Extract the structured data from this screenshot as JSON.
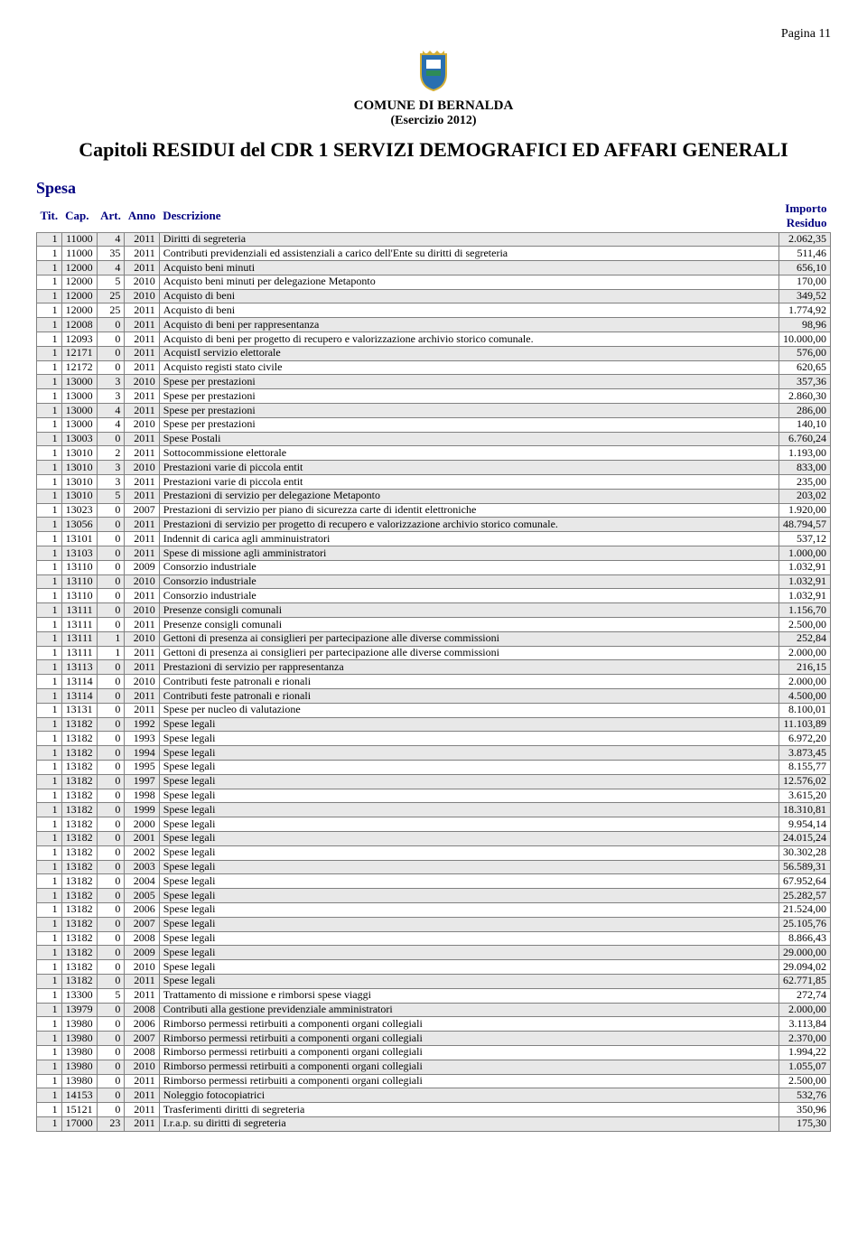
{
  "page_number": "Pagina 11",
  "org": "COMUNE DI BERNALDA",
  "exercise": "(Esercizio 2012)",
  "title": "Capitoli RESIDUI del CDR 1 SERVIZI DEMOGRAFICI ED AFFARI GENERALI",
  "section": "Spesa",
  "headers": {
    "tit": "Tit.",
    "cap": "Cap.",
    "art": "Art.",
    "anno": "Anno",
    "desc": "Descrizione",
    "imp": "Importo Residuo"
  },
  "crest_colors": {
    "gold": "#d4af37",
    "blue": "#2a6fb0",
    "green": "#2e8b57",
    "red": "#b22222"
  },
  "rows": [
    {
      "t": "1",
      "c": "11000",
      "a": "4",
      "y": "2011",
      "d": "Diritti di segreteria",
      "i": "2.062,35"
    },
    {
      "t": "1",
      "c": "11000",
      "a": "35",
      "y": "2011",
      "d": "Contributi previdenziali ed assistenziali a carico dell'Ente su diritti di segreteria",
      "i": "511,46"
    },
    {
      "t": "1",
      "c": "12000",
      "a": "4",
      "y": "2011",
      "d": "Acquisto beni minuti",
      "i": "656,10"
    },
    {
      "t": "1",
      "c": "12000",
      "a": "5",
      "y": "2010",
      "d": "Acquisto beni minuti per delegazione Metaponto",
      "i": "170,00"
    },
    {
      "t": "1",
      "c": "12000",
      "a": "25",
      "y": "2010",
      "d": "Acquisto di beni",
      "i": "349,52"
    },
    {
      "t": "1",
      "c": "12000",
      "a": "25",
      "y": "2011",
      "d": "Acquisto di beni",
      "i": "1.774,92"
    },
    {
      "t": "1",
      "c": "12008",
      "a": "0",
      "y": "2011",
      "d": "Acquisto di beni per rappresentanza",
      "i": "98,96"
    },
    {
      "t": "1",
      "c": "12093",
      "a": "0",
      "y": "2011",
      "d": "Acquisto di beni per progetto di recupero e valorizzazione archivio storico comunale.",
      "i": "10.000,00"
    },
    {
      "t": "1",
      "c": "12171",
      "a": "0",
      "y": "2011",
      "d": "AcquistI servizio elettorale",
      "i": "576,00"
    },
    {
      "t": "1",
      "c": "12172",
      "a": "0",
      "y": "2011",
      "d": "Acquisto registi stato civile",
      "i": "620,65"
    },
    {
      "t": "1",
      "c": "13000",
      "a": "3",
      "y": "2010",
      "d": "Spese per prestazioni",
      "i": "357,36"
    },
    {
      "t": "1",
      "c": "13000",
      "a": "3",
      "y": "2011",
      "d": "Spese per prestazioni",
      "i": "2.860,30"
    },
    {
      "t": "1",
      "c": "13000",
      "a": "4",
      "y": "2011",
      "d": "Spese per prestazioni",
      "i": "286,00"
    },
    {
      "t": "1",
      "c": "13000",
      "a": "4",
      "y": "2010",
      "d": "Spese per prestazioni",
      "i": "140,10"
    },
    {
      "t": "1",
      "c": "13003",
      "a": "0",
      "y": "2011",
      "d": "Spese Postali",
      "i": "6.760,24"
    },
    {
      "t": "1",
      "c": "13010",
      "a": "2",
      "y": "2011",
      "d": "Sottocommissione elettorale",
      "i": "1.193,00"
    },
    {
      "t": "1",
      "c": "13010",
      "a": "3",
      "y": "2010",
      "d": "Prestazioni varie  di piccola entit",
      "i": "833,00"
    },
    {
      "t": "1",
      "c": "13010",
      "a": "3",
      "y": "2011",
      "d": "Prestazioni varie  di piccola entit",
      "i": "235,00"
    },
    {
      "t": "1",
      "c": "13010",
      "a": "5",
      "y": "2011",
      "d": "Prestazioni di servizio per delegazione Metaponto",
      "i": "203,02"
    },
    {
      "t": "1",
      "c": "13023",
      "a": "0",
      "y": "2007",
      "d": "Prestazioni di servizio per piano di sicurezza carte di identit elettroniche",
      "i": "1.920,00"
    },
    {
      "t": "1",
      "c": "13056",
      "a": "0",
      "y": "2011",
      "d": "Prestazioni di servizio per progetto di recupero e valorizzazione archivio storico comunale.",
      "i": "48.794,57"
    },
    {
      "t": "1",
      "c": "13101",
      "a": "0",
      "y": "2011",
      "d": "Indennit di carica agli amminuistratori",
      "i": "537,12"
    },
    {
      "t": "1",
      "c": "13103",
      "a": "0",
      "y": "2011",
      "d": "Spese di missione agli amministratori",
      "i": "1.000,00"
    },
    {
      "t": "1",
      "c": "13110",
      "a": "0",
      "y": "2009",
      "d": "Consorzio industriale",
      "i": "1.032,91"
    },
    {
      "t": "1",
      "c": "13110",
      "a": "0",
      "y": "2010",
      "d": "Consorzio industriale",
      "i": "1.032,91"
    },
    {
      "t": "1",
      "c": "13110",
      "a": "0",
      "y": "2011",
      "d": "Consorzio industriale",
      "i": "1.032,91"
    },
    {
      "t": "1",
      "c": "13111",
      "a": "0",
      "y": "2010",
      "d": "Presenze consigli comunali",
      "i": "1.156,70"
    },
    {
      "t": "1",
      "c": "13111",
      "a": "0",
      "y": "2011",
      "d": "Presenze consigli comunali",
      "i": "2.500,00"
    },
    {
      "t": "1",
      "c": "13111",
      "a": "1",
      "y": "2010",
      "d": "Gettoni di presenza ai consiglieri per partecipazione alle diverse commissioni",
      "i": "252,84"
    },
    {
      "t": "1",
      "c": "13111",
      "a": "1",
      "y": "2011",
      "d": "Gettoni di presenza ai consiglieri per partecipazione alle diverse commissioni",
      "i": "2.000,00"
    },
    {
      "t": "1",
      "c": "13113",
      "a": "0",
      "y": "2011",
      "d": "Prestazioni di servizio per rappresentanza",
      "i": "216,15"
    },
    {
      "t": "1",
      "c": "13114",
      "a": "0",
      "y": "2010",
      "d": "Contributi feste patronali e rionali",
      "i": "2.000,00"
    },
    {
      "t": "1",
      "c": "13114",
      "a": "0",
      "y": "2011",
      "d": "Contributi feste patronali e rionali",
      "i": "4.500,00"
    },
    {
      "t": "1",
      "c": "13131",
      "a": "0",
      "y": "2011",
      "d": "Spese per nucleo di valutazione",
      "i": "8.100,01"
    },
    {
      "t": "1",
      "c": "13182",
      "a": "0",
      "y": "1992",
      "d": "Spese legali",
      "i": "11.103,89"
    },
    {
      "t": "1",
      "c": "13182",
      "a": "0",
      "y": "1993",
      "d": "Spese legali",
      "i": "6.972,20"
    },
    {
      "t": "1",
      "c": "13182",
      "a": "0",
      "y": "1994",
      "d": "Spese legali",
      "i": "3.873,45"
    },
    {
      "t": "1",
      "c": "13182",
      "a": "0",
      "y": "1995",
      "d": "Spese legali",
      "i": "8.155,77"
    },
    {
      "t": "1",
      "c": "13182",
      "a": "0",
      "y": "1997",
      "d": "Spese legali",
      "i": "12.576,02"
    },
    {
      "t": "1",
      "c": "13182",
      "a": "0",
      "y": "1998",
      "d": "Spese legali",
      "i": "3.615,20"
    },
    {
      "t": "1",
      "c": "13182",
      "a": "0",
      "y": "1999",
      "d": "Spese legali",
      "i": "18.310,81"
    },
    {
      "t": "1",
      "c": "13182",
      "a": "0",
      "y": "2000",
      "d": "Spese legali",
      "i": "9.954,14"
    },
    {
      "t": "1",
      "c": "13182",
      "a": "0",
      "y": "2001",
      "d": "Spese legali",
      "i": "24.015,24"
    },
    {
      "t": "1",
      "c": "13182",
      "a": "0",
      "y": "2002",
      "d": "Spese legali",
      "i": "30.302,28"
    },
    {
      "t": "1",
      "c": "13182",
      "a": "0",
      "y": "2003",
      "d": "Spese legali",
      "i": "56.589,31"
    },
    {
      "t": "1",
      "c": "13182",
      "a": "0",
      "y": "2004",
      "d": "Spese legali",
      "i": "67.952,64"
    },
    {
      "t": "1",
      "c": "13182",
      "a": "0",
      "y": "2005",
      "d": "Spese legali",
      "i": "25.282,57"
    },
    {
      "t": "1",
      "c": "13182",
      "a": "0",
      "y": "2006",
      "d": "Spese legali",
      "i": "21.524,00"
    },
    {
      "t": "1",
      "c": "13182",
      "a": "0",
      "y": "2007",
      "d": "Spese legali",
      "i": "25.105,76"
    },
    {
      "t": "1",
      "c": "13182",
      "a": "0",
      "y": "2008",
      "d": "Spese legali",
      "i": "8.866,43"
    },
    {
      "t": "1",
      "c": "13182",
      "a": "0",
      "y": "2009",
      "d": "Spese legali",
      "i": "29.000,00"
    },
    {
      "t": "1",
      "c": "13182",
      "a": "0",
      "y": "2010",
      "d": "Spese legali",
      "i": "29.094,02"
    },
    {
      "t": "1",
      "c": "13182",
      "a": "0",
      "y": "2011",
      "d": "Spese legali",
      "i": "62.771,85"
    },
    {
      "t": "1",
      "c": "13300",
      "a": "5",
      "y": "2011",
      "d": "Trattamento di missione e rimborsi spese viaggi",
      "i": "272,74"
    },
    {
      "t": "1",
      "c": "13979",
      "a": "0",
      "y": "2008",
      "d": "Contributi alla gestione previdenziale amministratori",
      "i": "2.000,00"
    },
    {
      "t": "1",
      "c": "13980",
      "a": "0",
      "y": "2006",
      "d": "Rimborso permessi retirbuiti a componenti organi collegiali",
      "i": "3.113,84"
    },
    {
      "t": "1",
      "c": "13980",
      "a": "0",
      "y": "2007",
      "d": "Rimborso permessi retirbuiti a componenti organi collegiali",
      "i": "2.370,00"
    },
    {
      "t": "1",
      "c": "13980",
      "a": "0",
      "y": "2008",
      "d": "Rimborso permessi retirbuiti a componenti organi collegiali",
      "i": "1.994,22"
    },
    {
      "t": "1",
      "c": "13980",
      "a": "0",
      "y": "2010",
      "d": "Rimborso permessi retirbuiti a componenti organi collegiali",
      "i": "1.055,07"
    },
    {
      "t": "1",
      "c": "13980",
      "a": "0",
      "y": "2011",
      "d": "Rimborso permessi retirbuiti a componenti organi collegiali",
      "i": "2.500,00"
    },
    {
      "t": "1",
      "c": "14153",
      "a": "0",
      "y": "2011",
      "d": "Noleggio fotocopiatrici",
      "i": "532,76"
    },
    {
      "t": "1",
      "c": "15121",
      "a": "0",
      "y": "2011",
      "d": "Trasferimenti diritti di segreteria",
      "i": "350,96"
    },
    {
      "t": "1",
      "c": "17000",
      "a": "23",
      "y": "2011",
      "d": "I.r.a.p. su diritti di segreteria",
      "i": "175,30"
    }
  ]
}
